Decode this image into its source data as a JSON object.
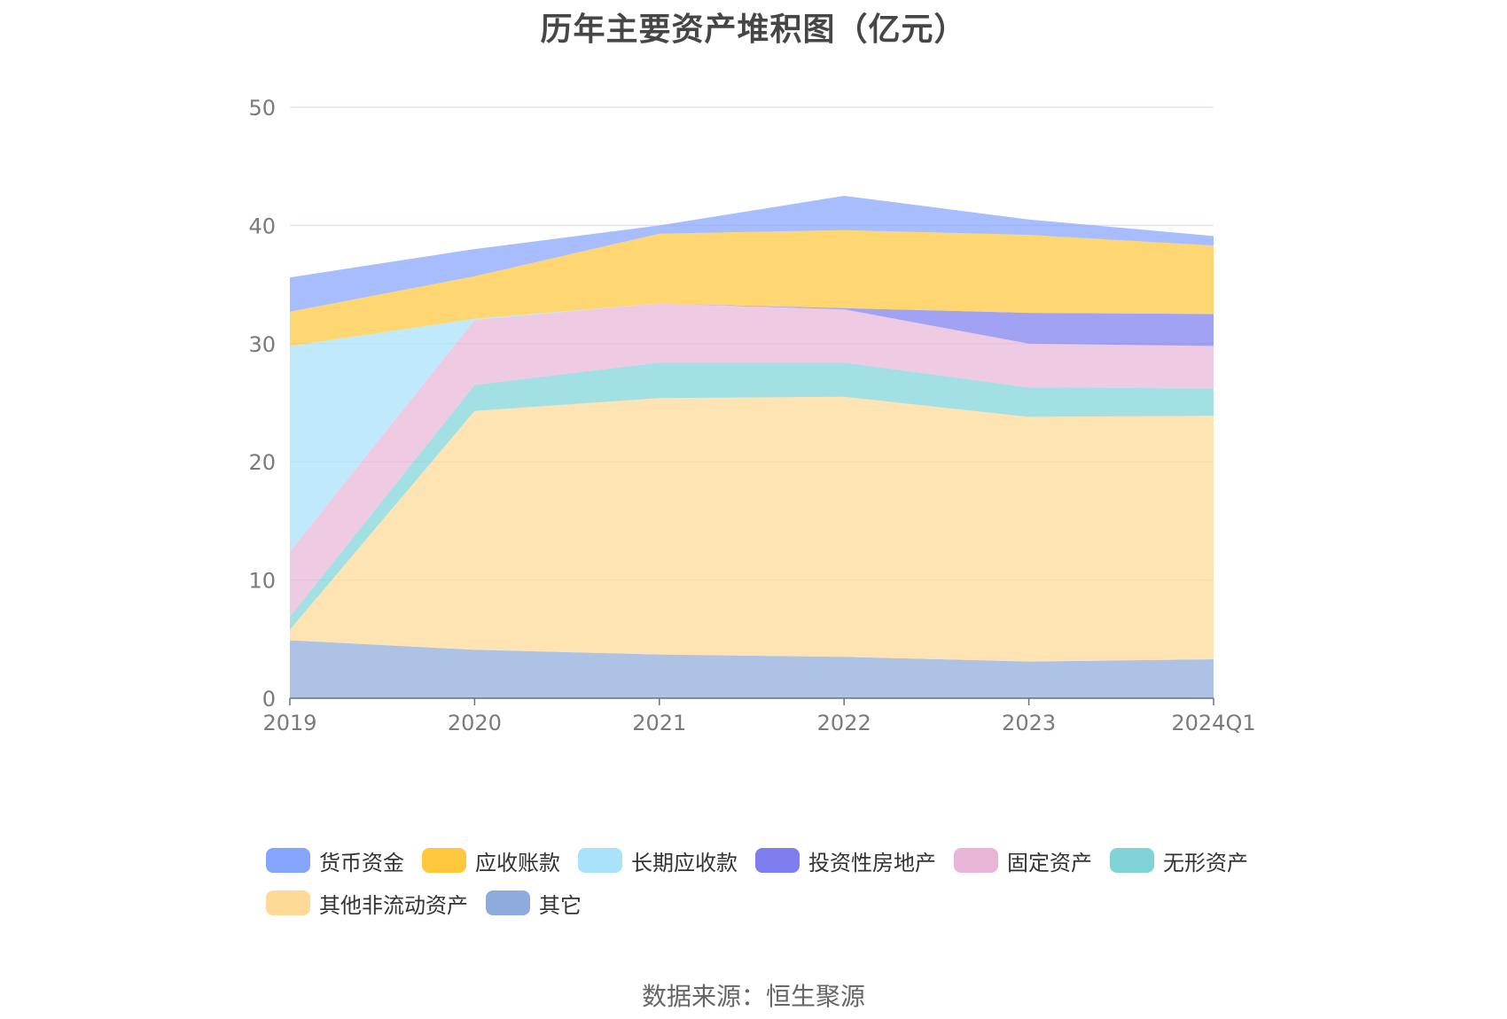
{
  "chart_data": {
    "type": "area",
    "stacked": true,
    "title": "历年主要资产堆积图（亿元）",
    "categories": [
      "2019",
      "2020",
      "2021",
      "2022",
      "2023",
      "2024Q1"
    ],
    "ylim": [
      0,
      50
    ],
    "yticks": [
      0,
      10,
      20,
      30,
      40,
      50
    ],
    "grid": true,
    "legend_position": "bottom",
    "series": [
      {
        "name": "其它",
        "color": "#8faadc",
        "values": [
          4.9,
          4.1,
          3.7,
          3.5,
          3.1,
          3.3
        ]
      },
      {
        "name": "其他非流动资产",
        "color": "#ffd996",
        "values": [
          0.9,
          20.2,
          21.7,
          22.0,
          20.7,
          20.6
        ]
      },
      {
        "name": "无形资产",
        "color": "#80d4d8",
        "values": [
          1.1,
          2.2,
          3.0,
          2.9,
          2.5,
          2.3
        ]
      },
      {
        "name": "固定资产",
        "color": "#e8b5d8",
        "values": [
          5.5,
          5.5,
          5.0,
          4.5,
          3.7,
          3.6
        ]
      },
      {
        "name": "投资性房地产",
        "color": "#7e7ef0",
        "values": [
          0,
          0,
          0,
          0.1,
          2.6,
          2.7
        ]
      },
      {
        "name": "长期应收款",
        "color": "#a8e2fb",
        "values": [
          17.4,
          0.1,
          0,
          0,
          0,
          0
        ]
      },
      {
        "name": "应收账款",
        "color": "#ffc83c",
        "values": [
          2.9,
          3.6,
          5.9,
          6.6,
          6.6,
          5.8
        ]
      },
      {
        "name": "货币资金",
        "color": "#85a4fc",
        "values": [
          2.9,
          2.3,
          0.7,
          2.9,
          1.3,
          0.8
        ]
      }
    ],
    "legend_order": [
      "货币资金",
      "应收账款",
      "长期应收款",
      "投资性房地产",
      "固定资产",
      "无形资产",
      "其他非流动资产",
      "其它"
    ]
  },
  "source_note": "数据来源：恒生聚源"
}
